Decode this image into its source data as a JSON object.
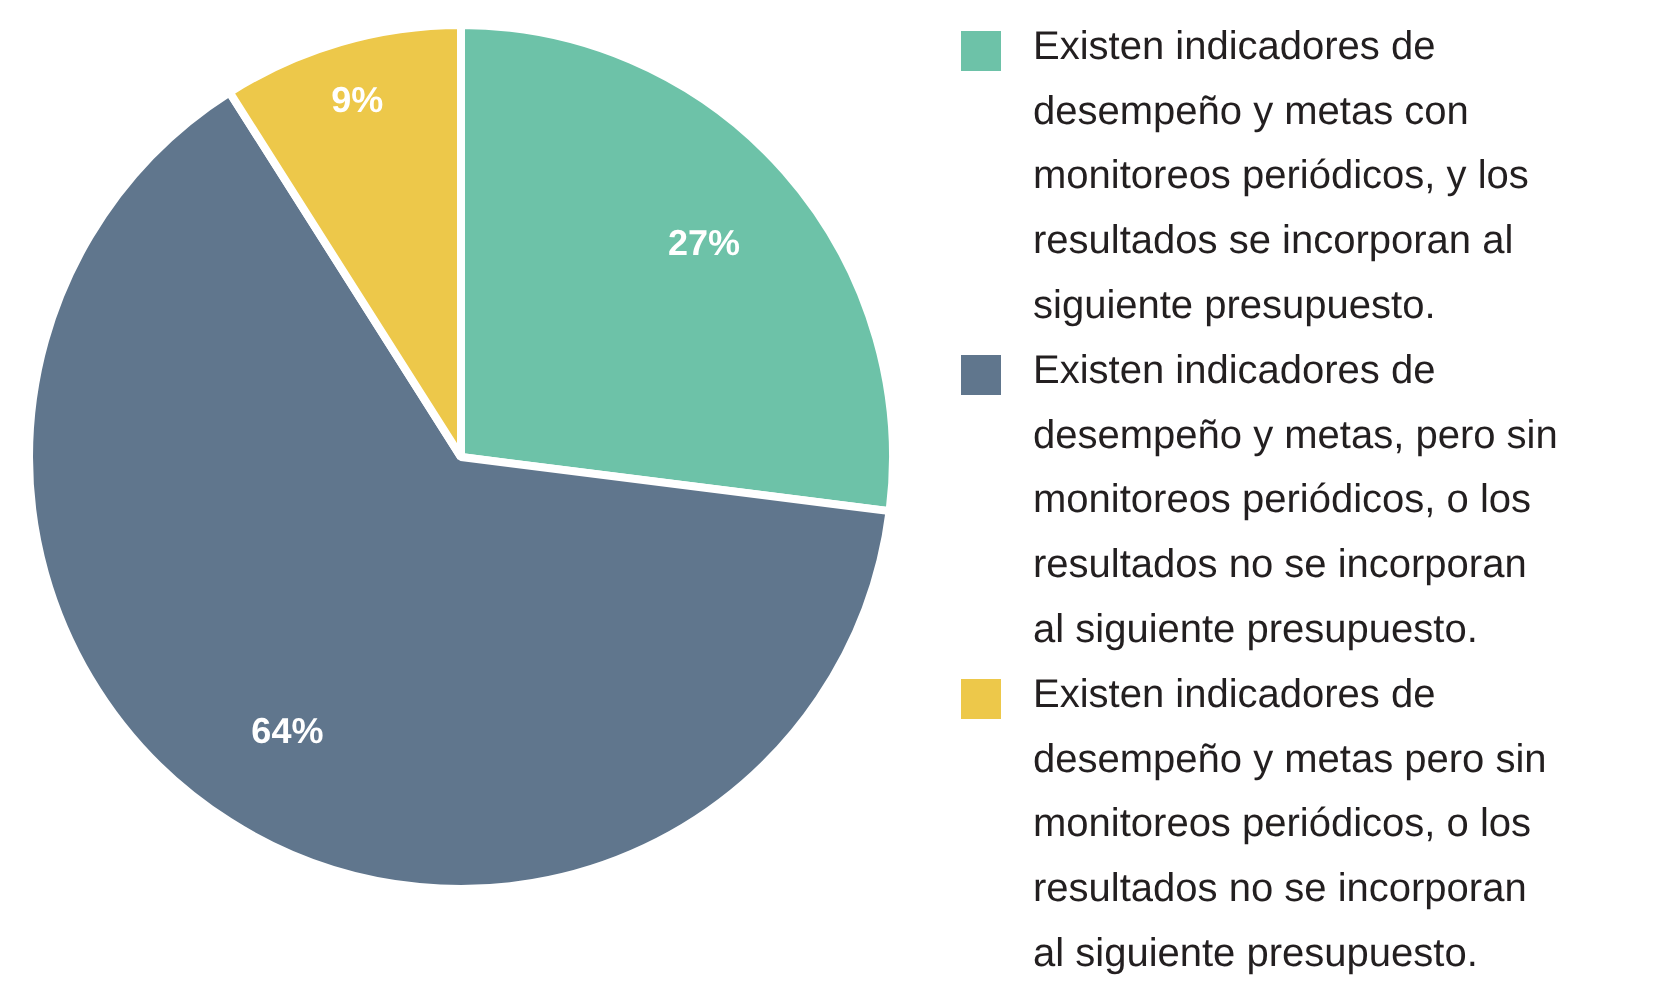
{
  "chart_data": {
    "type": "pie",
    "categories": [
      "Existen indicadores de desempeño y metas con monitoreos periódicos, y los resultados se incorporan al siguiente presupuesto.",
      "Existen indicadores de desempeño y metas, pero sin monitoreos periódicos, o los resultados no se incorporan al siguiente presupuesto.",
      "Existen indicadores de desempeño y metas pero sin monitoreos periódicos, o los resultados no se incorporan al siguiente presupuesto."
    ],
    "values": [
      27,
      64,
      9
    ],
    "colors": [
      "#6dc2a8",
      "#60768d",
      "#edc84a"
    ],
    "value_labels": [
      "27%",
      "64%",
      "9%"
    ],
    "legend": "right"
  }
}
